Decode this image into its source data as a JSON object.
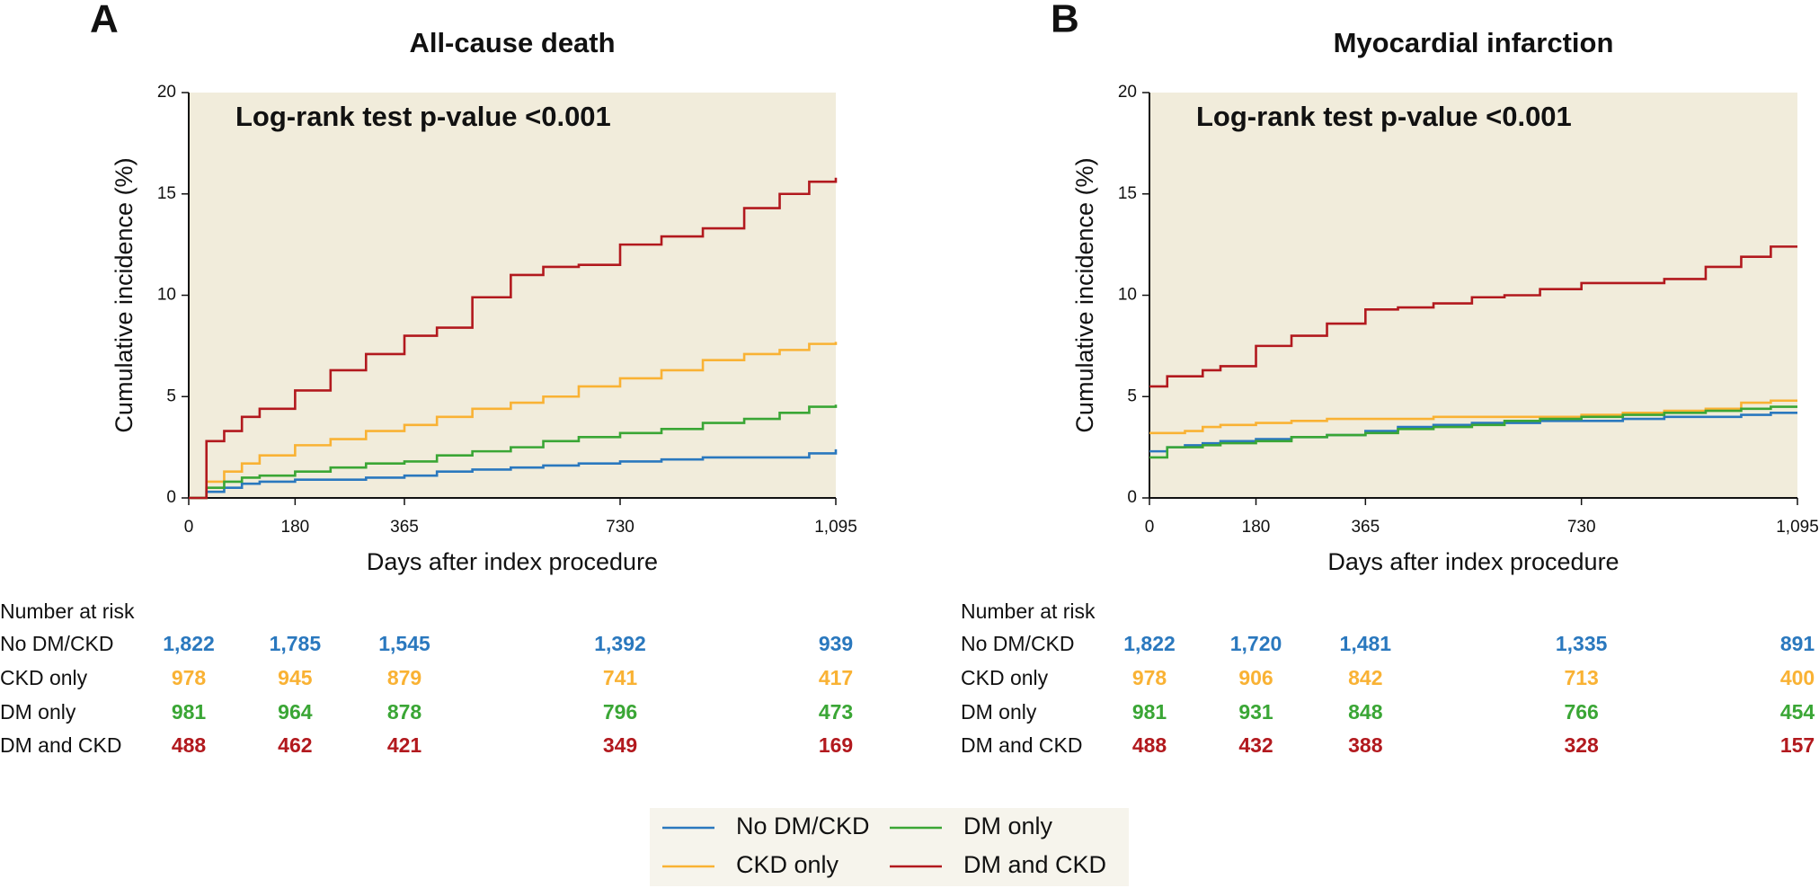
{
  "chart_data": [
    {
      "type": "line",
      "step": true,
      "panel": "A",
      "title": "All-cause death",
      "annotation": "Log-rank test p-value <0.001",
      "xlabel": "Days after index procedure",
      "ylabel": "Cumulative incidence (%)",
      "xlim": [
        0,
        1095
      ],
      "ylim": [
        0,
        20
      ],
      "xticks": [
        0,
        180,
        365,
        730,
        {
          "value": 1095,
          "label": "1,095"
        }
      ],
      "yticks": [
        0,
        5,
        10,
        15,
        20
      ],
      "background": "#f1ecdb",
      "x": [
        0,
        30,
        60,
        90,
        120,
        180,
        240,
        300,
        365,
        420,
        480,
        545,
        600,
        660,
        730,
        800,
        870,
        940,
        1000,
        1050,
        1095
      ],
      "series": [
        {
          "name": "No DM/CKD",
          "color": "#2a78be",
          "values": [
            0,
            0.3,
            0.5,
            0.7,
            0.8,
            0.9,
            0.9,
            1.0,
            1.1,
            1.3,
            1.4,
            1.5,
            1.6,
            1.7,
            1.8,
            1.9,
            2.0,
            2.0,
            2.0,
            2.2,
            2.4
          ]
        },
        {
          "name": "CKD only",
          "color": "#f9b234",
          "values": [
            0,
            0.8,
            1.3,
            1.7,
            2.1,
            2.6,
            2.9,
            3.3,
            3.6,
            4.0,
            4.4,
            4.7,
            5.0,
            5.5,
            5.9,
            6.3,
            6.8,
            7.1,
            7.3,
            7.6,
            7.7
          ]
        },
        {
          "name": "DM only",
          "color": "#3aa635",
          "values": [
            0,
            0.5,
            0.8,
            1.0,
            1.1,
            1.3,
            1.5,
            1.7,
            1.8,
            2.1,
            2.3,
            2.5,
            2.8,
            3.0,
            3.2,
            3.4,
            3.7,
            3.9,
            4.2,
            4.5,
            4.6
          ]
        },
        {
          "name": "DM and CKD",
          "color": "#b2191e",
          "values": [
            0,
            2.8,
            3.3,
            4.0,
            4.4,
            5.3,
            6.3,
            7.1,
            8.0,
            8.4,
            9.9,
            11.0,
            11.4,
            11.5,
            12.5,
            12.9,
            13.3,
            14.3,
            15.0,
            15.6,
            15.8
          ]
        }
      ],
      "risk_table": {
        "title": "Number at risk",
        "x": [
          0,
          180,
          365,
          730,
          1095
        ],
        "rows": [
          {
            "values": [
              1822,
              1785,
              1545,
              1392,
              939
            ],
            "value_labels": [
              "1,822",
              "1,785",
              "1,545",
              "1,392",
              "939"
            ]
          },
          {
            "values": [
              978,
              945,
              879,
              741,
              417
            ],
            "value_labels": [
              "978",
              "945",
              "879",
              "741",
              "417"
            ]
          },
          {
            "values": [
              981,
              964,
              878,
              796,
              473
            ],
            "value_labels": [
              "981",
              "964",
              "878",
              "796",
              "473"
            ]
          },
          {
            "values": [
              488,
              462,
              421,
              349,
              169
            ],
            "value_labels": [
              "488",
              "462",
              "421",
              "349",
              "169"
            ]
          }
        ]
      }
    },
    {
      "type": "line",
      "step": true,
      "panel": "B",
      "title": "Myocardial infarction",
      "annotation": "Log-rank test p-value <0.001",
      "xlabel": "Days after index procedure",
      "ylabel": "Cumulative incidence (%)",
      "xlim": [
        0,
        1095
      ],
      "ylim": [
        0,
        20
      ],
      "xticks": [
        0,
        180,
        365,
        730,
        {
          "value": 1095,
          "label": "1,095"
        }
      ],
      "yticks": [
        0,
        5,
        10,
        15,
        20
      ],
      "background": "#f1ecdb",
      "x": [
        0,
        30,
        60,
        90,
        120,
        180,
        240,
        300,
        365,
        420,
        480,
        545,
        600,
        660,
        730,
        800,
        870,
        940,
        1000,
        1050,
        1095
      ],
      "series": [
        {
          "name": "No DM/CKD",
          "color": "#2a78be",
          "values": [
            2.3,
            2.5,
            2.6,
            2.7,
            2.8,
            2.9,
            3.0,
            3.1,
            3.3,
            3.5,
            3.6,
            3.7,
            3.7,
            3.8,
            3.8,
            3.9,
            4.0,
            4.0,
            4.1,
            4.2,
            4.2
          ]
        },
        {
          "name": "CKD only",
          "color": "#f9b234",
          "values": [
            3.2,
            3.2,
            3.3,
            3.5,
            3.6,
            3.7,
            3.8,
            3.9,
            3.9,
            3.9,
            4.0,
            4.0,
            4.0,
            4.0,
            4.1,
            4.2,
            4.3,
            4.4,
            4.7,
            4.8,
            4.8
          ]
        },
        {
          "name": "DM only",
          "color": "#3aa635",
          "values": [
            2.0,
            2.5,
            2.5,
            2.6,
            2.7,
            2.8,
            3.0,
            3.1,
            3.2,
            3.4,
            3.5,
            3.6,
            3.8,
            3.9,
            4.0,
            4.1,
            4.2,
            4.3,
            4.4,
            4.5,
            4.5
          ]
        },
        {
          "name": "DM and CKD",
          "color": "#b2191e",
          "values": [
            5.5,
            6.0,
            6.0,
            6.3,
            6.5,
            7.5,
            8.0,
            8.6,
            9.3,
            9.4,
            9.6,
            9.9,
            10.0,
            10.3,
            10.6,
            10.6,
            10.8,
            11.4,
            11.9,
            12.4,
            12.4
          ]
        }
      ],
      "risk_table": {
        "title": "Number at risk",
        "x": [
          0,
          180,
          365,
          730,
          1095
        ],
        "rows": [
          {
            "values": [
              1822,
              1720,
              1481,
              1335,
              891
            ],
            "value_labels": [
              "1,822",
              "1,720",
              "1,481",
              "1,335",
              "891"
            ]
          },
          {
            "values": [
              978,
              906,
              842,
              713,
              400
            ],
            "value_labels": [
              "978",
              "906",
              "842",
              "713",
              "400"
            ]
          },
          {
            "values": [
              981,
              931,
              848,
              766,
              454
            ],
            "value_labels": [
              "981",
              "931",
              "848",
              "766",
              "454"
            ]
          },
          {
            "values": [
              488,
              432,
              388,
              328,
              157
            ],
            "value_labels": [
              "488",
              "432",
              "388",
              "328",
              "157"
            ]
          }
        ]
      }
    }
  ]
}
